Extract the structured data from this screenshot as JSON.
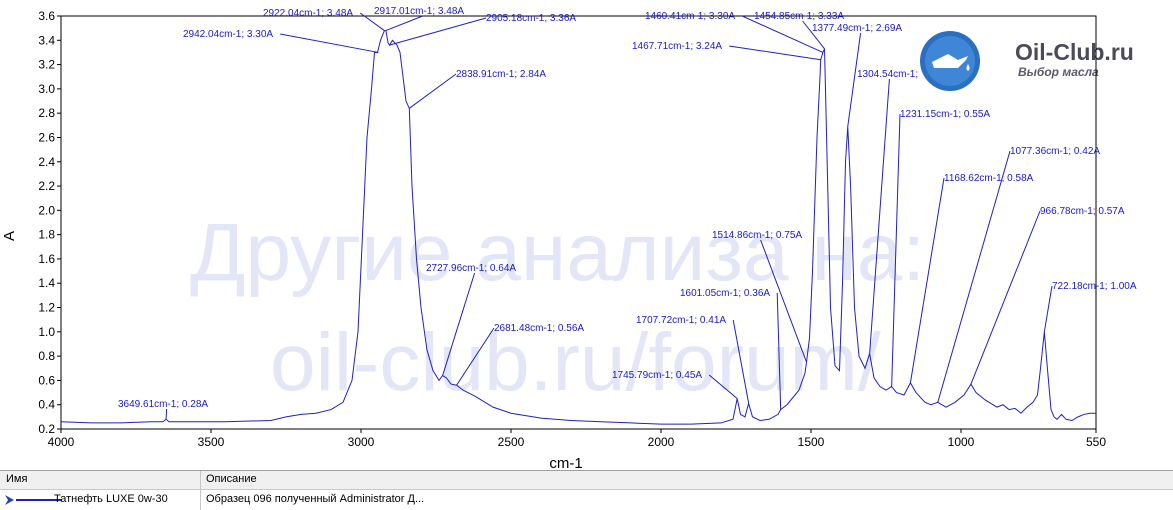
{
  "chart_data": {
    "type": "line",
    "xlabel": "cm-1",
    "ylabel": "A",
    "xlim": [
      4000,
      550
    ],
    "ylim": [
      0.2,
      3.6
    ],
    "x_reversed": true,
    "x_ticks": [
      4000,
      3500,
      3000,
      2500,
      2000,
      1500,
      1000,
      550
    ],
    "y_ticks": [
      0.2,
      0.4,
      0.6,
      0.8,
      1.0,
      1.2,
      1.4,
      1.6,
      1.8,
      2.0,
      2.2,
      2.4,
      2.6,
      2.8,
      3.0,
      3.2,
      3.4,
      3.6
    ],
    "y_tick_labels": [
      "0.2",
      "0.4",
      "0.6",
      "0.8",
      "1.0",
      "1.2",
      "1.4",
      "1.6",
      "1.8",
      "2.0",
      "2.2",
      "2.4",
      "2.6",
      "2.8",
      "3.0",
      "3.2",
      "3.4",
      "3.6"
    ],
    "series": [
      {
        "color": "#2020c0",
        "points": [
          [
            4000,
            0.26
          ],
          [
            3900,
            0.25
          ],
          [
            3800,
            0.25
          ],
          [
            3700,
            0.26
          ],
          [
            3660,
            0.26
          ],
          [
            3650,
            0.28
          ],
          [
            3640,
            0.26
          ],
          [
            3550,
            0.26
          ],
          [
            3450,
            0.26
          ],
          [
            3300,
            0.27
          ],
          [
            3250,
            0.3
          ],
          [
            3200,
            0.32
          ],
          [
            3150,
            0.33
          ],
          [
            3100,
            0.36
          ],
          [
            3060,
            0.42
          ],
          [
            3030,
            0.6
          ],
          [
            3010,
            1.0
          ],
          [
            2995,
            1.8
          ],
          [
            2980,
            2.6
          ],
          [
            2965,
            3.0
          ],
          [
            2955,
            3.3
          ],
          [
            2945,
            3.3
          ],
          [
            2935,
            3.4
          ],
          [
            2922,
            3.48
          ],
          [
            2917,
            3.48
          ],
          [
            2910,
            3.38
          ],
          [
            2905,
            3.36
          ],
          [
            2895,
            3.4
          ],
          [
            2880,
            3.36
          ],
          [
            2870,
            3.3
          ],
          [
            2860,
            3.1
          ],
          [
            2850,
            2.9
          ],
          [
            2839,
            2.84
          ],
          [
            2830,
            2.2
          ],
          [
            2815,
            1.6
          ],
          [
            2800,
            1.2
          ],
          [
            2780,
            0.85
          ],
          [
            2760,
            0.68
          ],
          [
            2740,
            0.6
          ],
          [
            2728,
            0.64
          ],
          [
            2715,
            0.62
          ],
          [
            2700,
            0.57
          ],
          [
            2681,
            0.56
          ],
          [
            2660,
            0.52
          ],
          [
            2620,
            0.47
          ],
          [
            2560,
            0.38
          ],
          [
            2500,
            0.33
          ],
          [
            2400,
            0.29
          ],
          [
            2300,
            0.27
          ],
          [
            2200,
            0.26
          ],
          [
            2100,
            0.25
          ],
          [
            2000,
            0.24
          ],
          [
            1900,
            0.24
          ],
          [
            1800,
            0.25
          ],
          [
            1760,
            0.28
          ],
          [
            1746,
            0.45
          ],
          [
            1735,
            0.32
          ],
          [
            1720,
            0.3
          ],
          [
            1708,
            0.41
          ],
          [
            1695,
            0.3
          ],
          [
            1670,
            0.27
          ],
          [
            1640,
            0.28
          ],
          [
            1610,
            0.32
          ],
          [
            1601,
            0.36
          ],
          [
            1580,
            0.4
          ],
          [
            1540,
            0.52
          ],
          [
            1520,
            0.66
          ],
          [
            1515,
            0.75
          ],
          [
            1505,
            0.95
          ],
          [
            1495,
            1.5
          ],
          [
            1480,
            2.6
          ],
          [
            1470,
            3.1
          ],
          [
            1467.7,
            3.24
          ],
          [
            1460.4,
            3.3
          ],
          [
            1454.9,
            3.33
          ],
          [
            1448,
            2.6
          ],
          [
            1435,
            1.2
          ],
          [
            1420,
            0.72
          ],
          [
            1405,
            0.68
          ],
          [
            1395,
            1.4
          ],
          [
            1385,
            2.4
          ],
          [
            1377.5,
            2.69
          ],
          [
            1368,
            2.2
          ],
          [
            1355,
            1.2
          ],
          [
            1340,
            0.8
          ],
          [
            1320,
            0.7
          ],
          [
            1304.5,
            0.82
          ],
          [
            1290,
            0.62
          ],
          [
            1270,
            0.55
          ],
          [
            1250,
            0.52
          ],
          [
            1231.2,
            0.55
          ],
          [
            1215,
            0.5
          ],
          [
            1190,
            0.48
          ],
          [
            1168.6,
            0.58
          ],
          [
            1150,
            0.5
          ],
          [
            1120,
            0.42
          ],
          [
            1100,
            0.4
          ],
          [
            1077.4,
            0.42
          ],
          [
            1050,
            0.38
          ],
          [
            1020,
            0.42
          ],
          [
            990,
            0.48
          ],
          [
            966.8,
            0.57
          ],
          [
            950,
            0.5
          ],
          [
            920,
            0.44
          ],
          [
            880,
            0.38
          ],
          [
            860,
            0.4
          ],
          [
            840,
            0.36
          ],
          [
            820,
            0.37
          ],
          [
            800,
            0.33
          ],
          [
            780,
            0.38
          ],
          [
            760,
            0.42
          ],
          [
            745,
            0.48
          ],
          [
            735,
            0.7
          ],
          [
            722.2,
            1.0
          ],
          [
            712,
            0.7
          ],
          [
            700,
            0.36
          ],
          [
            690,
            0.3
          ],
          [
            680,
            0.28
          ],
          [
            665,
            0.32
          ],
          [
            650,
            0.28
          ],
          [
            630,
            0.27
          ],
          [
            610,
            0.3
          ],
          [
            590,
            0.32
          ],
          [
            570,
            0.33
          ],
          [
            550,
            0.33
          ]
        ]
      }
    ],
    "annotations": [
      {
        "x": 3649.61,
        "y": 0.28,
        "text": "3649.61cm-1; 0.28A"
      },
      {
        "x": 2942.04,
        "y": 3.3,
        "text": "2942.04cm-1; 3.30A"
      },
      {
        "x": 2922.04,
        "y": 3.48,
        "text": "2922.04cm-1; 3.48A"
      },
      {
        "x": 2917.01,
        "y": 3.48,
        "text": "2917.01cm-1; 3.48A"
      },
      {
        "x": 2905.18,
        "y": 3.36,
        "text": "2905.18cm-1; 3.36A"
      },
      {
        "x": 2838.91,
        "y": 2.84,
        "text": "2838.91cm-1; 2.84A"
      },
      {
        "x": 2727.96,
        "y": 0.64,
        "text": "2727.96cm-1; 0.64A"
      },
      {
        "x": 2681.48,
        "y": 0.56,
        "text": "2681.48cm-1; 0.56A"
      },
      {
        "x": 1745.79,
        "y": 0.45,
        "text": "1745.79cm-1; 0.45A"
      },
      {
        "x": 1707.72,
        "y": 0.41,
        "text": "1707.72cm-1; 0.41A"
      },
      {
        "x": 1601.05,
        "y": 0.36,
        "text": "1601.05cm-1; 0.36A"
      },
      {
        "x": 1514.86,
        "y": 0.75,
        "text": "1514.86cm-1; 0.75A"
      },
      {
        "x": 1467.71,
        "y": 3.24,
        "text": "1467.71cm-1; 3.24A"
      },
      {
        "x": 1460.41,
        "y": 3.3,
        "text": "1460.41cm-1; 3.30A"
      },
      {
        "x": 1454.85,
        "y": 3.33,
        "text": "1454.85cm-1; 3.33A"
      },
      {
        "x": 1377.49,
        "y": 2.69,
        "text": "1377.49cm-1; 2.69A"
      },
      {
        "x": 1304.54,
        "y": 0.82,
        "text": "1304.54cm-1;"
      },
      {
        "x": 1231.15,
        "y": 0.55,
        "text": "1231.15cm-1; 0.55A"
      },
      {
        "x": 1168.62,
        "y": 0.58,
        "text": "1168.62cm-1; 0.58A"
      },
      {
        "x": 1077.36,
        "y": 0.42,
        "text": "1077.36cm-1; 0.42A"
      },
      {
        "x": 966.78,
        "y": 0.57,
        "text": "966.78cm-1; 0.57A"
      },
      {
        "x": 722.18,
        "y": 1.0,
        "text": "722.18cm-1; 1.00A"
      }
    ]
  },
  "watermark": {
    "line1": "Другие анализа на:",
    "line2": "oil-club.ru/forum/"
  },
  "logo": {
    "title": "Oil-Club.ru",
    "subtitle": "Выбор масла",
    "icon": "oil-can-icon",
    "color": "#2a6fc0"
  },
  "legend": {
    "headers": {
      "name": "Имя",
      "description": "Описание"
    },
    "rows": [
      {
        "icon": "arrow-marker-icon",
        "name": "Татнефть LUXE 0w-30",
        "description": "Образец 096 полученный Administrator Д..."
      }
    ]
  }
}
